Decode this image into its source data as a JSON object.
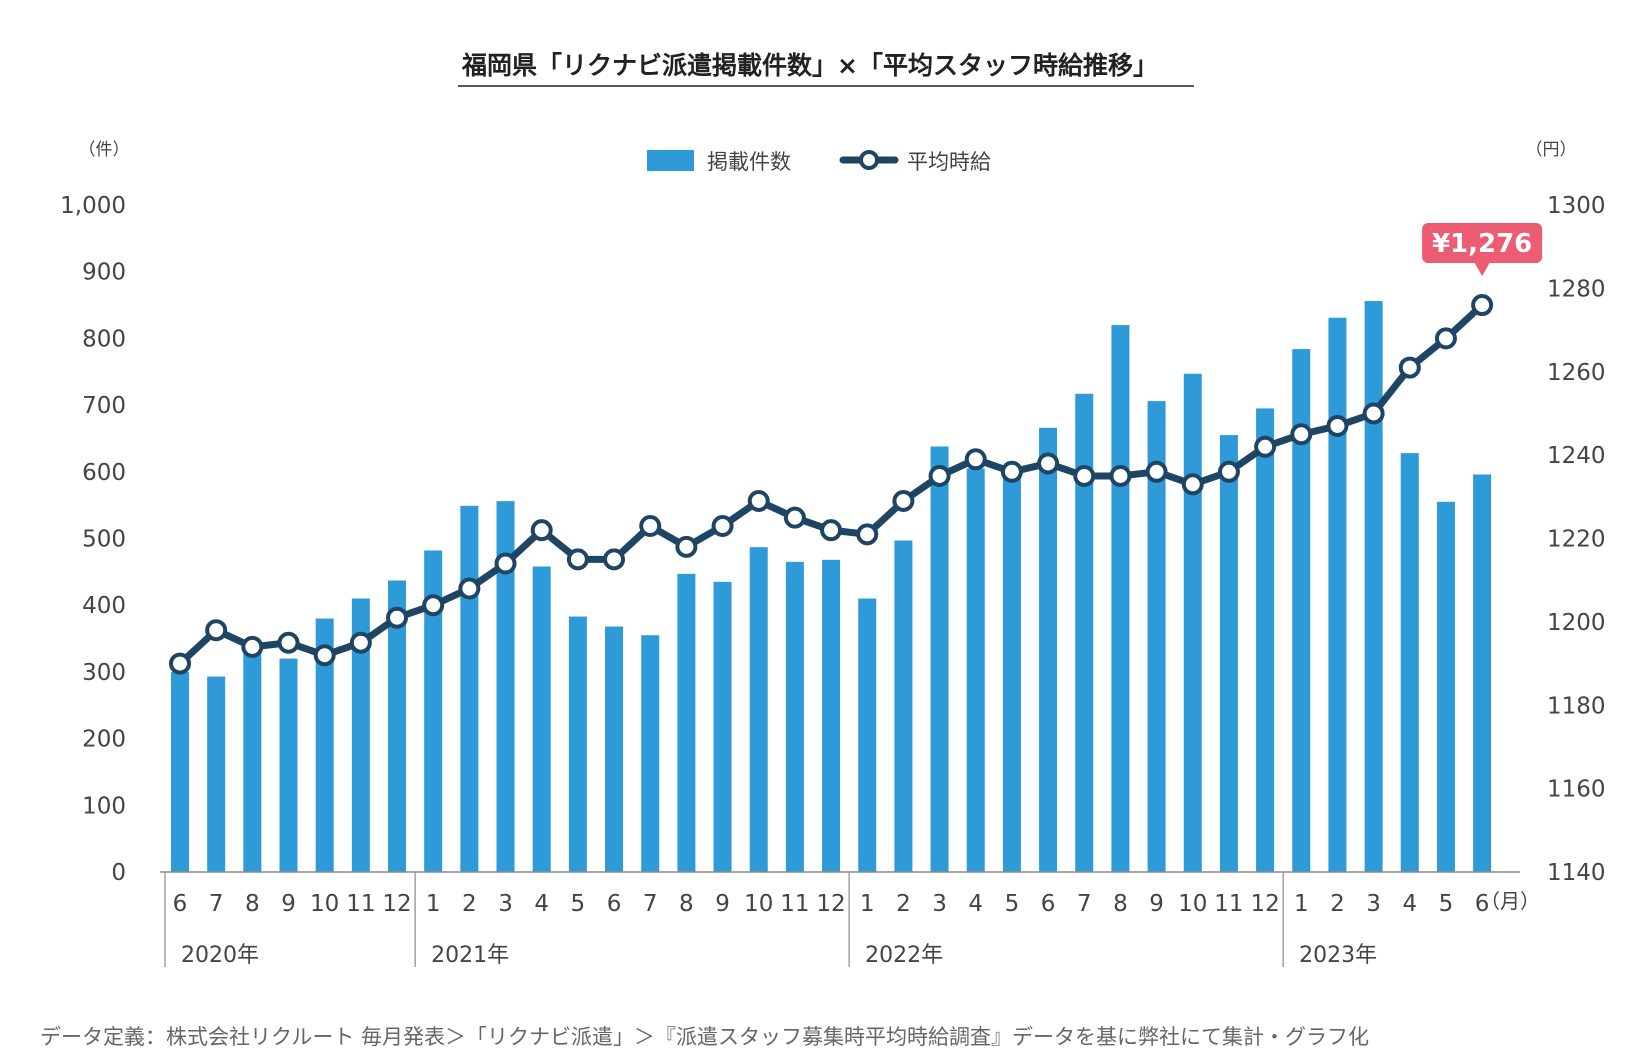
{
  "chart_data": {
    "type": "bar",
    "title": "福岡県「リクナビ派遣掲載件数」×「平均スタッフ時給推移」",
    "left_axis_unit": "（件）",
    "right_axis_unit": "（円）",
    "x_unit": "（月）",
    "left_ylim": [
      0,
      1000
    ],
    "left_ticks": [
      "0",
      "100",
      "200",
      "300",
      "400",
      "500",
      "600",
      "700",
      "800",
      "900",
      "1,000"
    ],
    "right_ylim": [
      1140,
      1300
    ],
    "right_ticks": [
      "1140",
      "1160",
      "1180",
      "1200",
      "1220",
      "1240",
      "1260",
      "1280",
      "1300"
    ],
    "categories": [
      "6",
      "7",
      "8",
      "9",
      "10",
      "11",
      "12",
      "1",
      "2",
      "3",
      "4",
      "5",
      "6",
      "7",
      "8",
      "9",
      "10",
      "11",
      "12",
      "1",
      "2",
      "3",
      "4",
      "5",
      "6",
      "7",
      "8",
      "9",
      "10",
      "11",
      "12",
      "1",
      "2",
      "3",
      "4",
      "5",
      "6"
    ],
    "year_groups": [
      {
        "label": "2020年",
        "start": 0
      },
      {
        "label": "2021年",
        "start": 7
      },
      {
        "label": "2022年",
        "start": 19
      },
      {
        "label": "2023年",
        "start": 31
      }
    ],
    "series": [
      {
        "name": "掲載件数",
        "type": "bar",
        "axis": "left",
        "color": "#2e9ad8",
        "values": [
          300,
          293,
          330,
          320,
          380,
          410,
          437,
          482,
          549,
          556,
          458,
          383,
          368,
          355,
          447,
          435,
          487,
          465,
          468,
          410,
          497,
          638,
          605,
          600,
          666,
          717,
          820,
          706,
          747,
          655,
          695,
          784,
          831,
          856,
          628,
          555,
          596
        ]
      },
      {
        "name": "平均時給",
        "type": "line",
        "axis": "right",
        "color": "#1e4564",
        "values": [
          1190,
          1198,
          1194,
          1195,
          1192,
          1195,
          1201,
          1204,
          1208,
          1214,
          1222,
          1215,
          1215,
          1223,
          1218,
          1223,
          1229,
          1225,
          1222,
          1221,
          1229,
          1235,
          1239,
          1236,
          1238,
          1235,
          1235,
          1236,
          1233,
          1236,
          1242,
          1245,
          1247,
          1250,
          1261,
          1268,
          1276
        ]
      }
    ],
    "callout": {
      "label": "¥1,276",
      "color": "#ec5c72"
    },
    "legend": {
      "position": "top-center"
    },
    "grid": false
  },
  "footnote": "データ定義：株式会社リクルート 毎月発表＞「リクナビ派遣」＞『派遣スタッフ募集時平均時給調査』データを基に弊社にて集計・グラフ化"
}
